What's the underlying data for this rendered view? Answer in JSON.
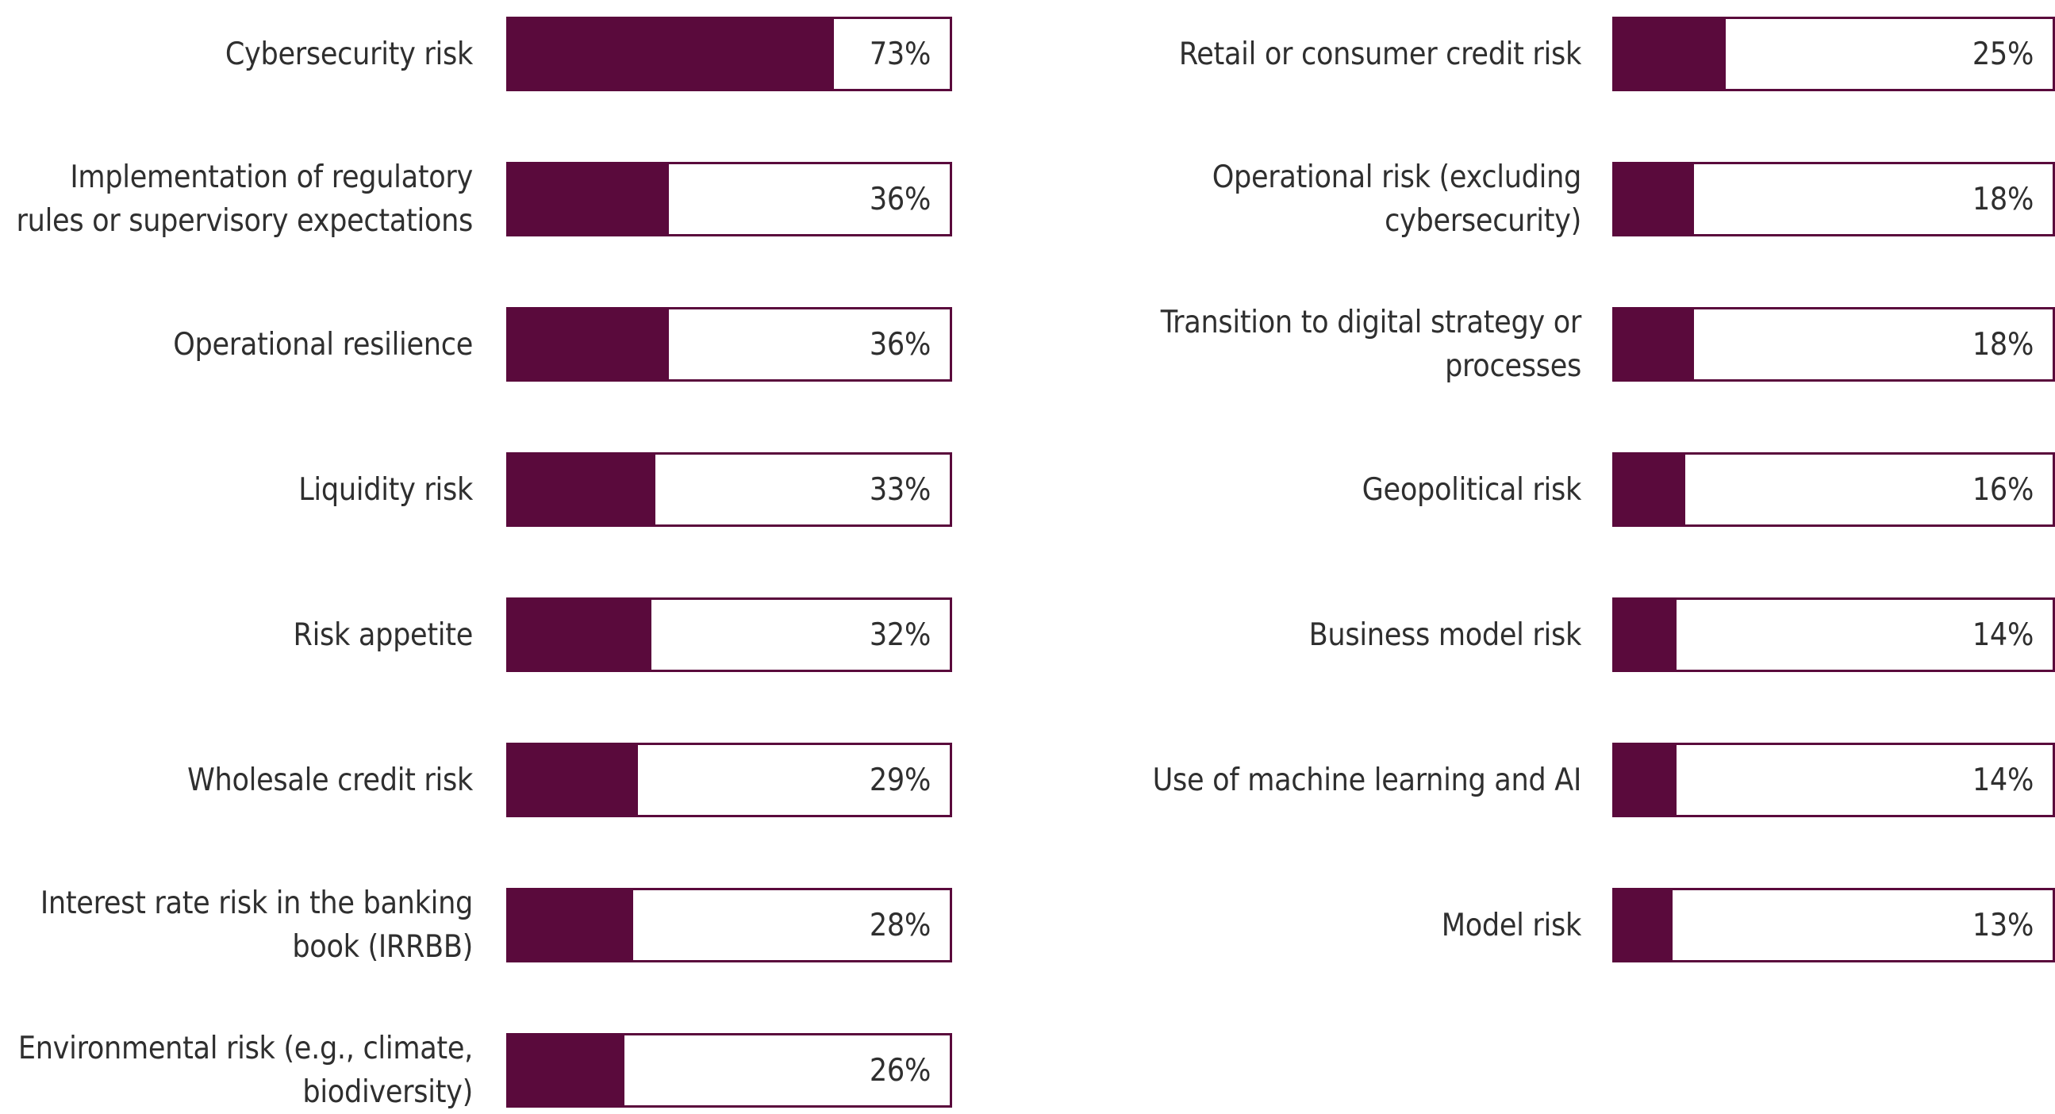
{
  "chart_data": [
    {
      "type": "bar",
      "orientation": "horizontal",
      "xlim": [
        0,
        100
      ],
      "colors": {
        "fill": "#5a0a3c",
        "outline": "#5a0a3c",
        "text": "#2f2f2f"
      },
      "categories": [
        "Cybersecurity risk",
        "Implementation of regulatory\nrules or supervisory expectations",
        "Operational resilience",
        "Liquidity risk",
        "Risk appetite",
        "Wholesale credit risk",
        "Interest rate risk in the banking\nbook (IRRBB)",
        "Environmental risk (e.g., climate,\nbiodiversity)"
      ],
      "values": [
        73,
        36,
        36,
        33,
        32,
        29,
        28,
        26
      ],
      "value_labels": [
        "73%",
        "36%",
        "36%",
        "33%",
        "32%",
        "29%",
        "28%",
        "26%"
      ]
    },
    {
      "type": "bar",
      "orientation": "horizontal",
      "xlim": [
        0,
        100
      ],
      "colors": {
        "fill": "#5a0a3c",
        "outline": "#5a0a3c",
        "text": "#2f2f2f"
      },
      "categories": [
        "Retail or consumer credit risk",
        "Operational risk (excluding\ncybersecurity)",
        "Transition to digital strategy or\nprocesses",
        "Geopolitical risk",
        "Business model risk",
        "Use of machine learning and AI",
        "Model risk"
      ],
      "values": [
        25,
        18,
        18,
        16,
        14,
        14,
        13
      ],
      "value_labels": [
        "25%",
        "18%",
        "18%",
        "16%",
        "14%",
        "14%",
        "13%"
      ]
    }
  ]
}
